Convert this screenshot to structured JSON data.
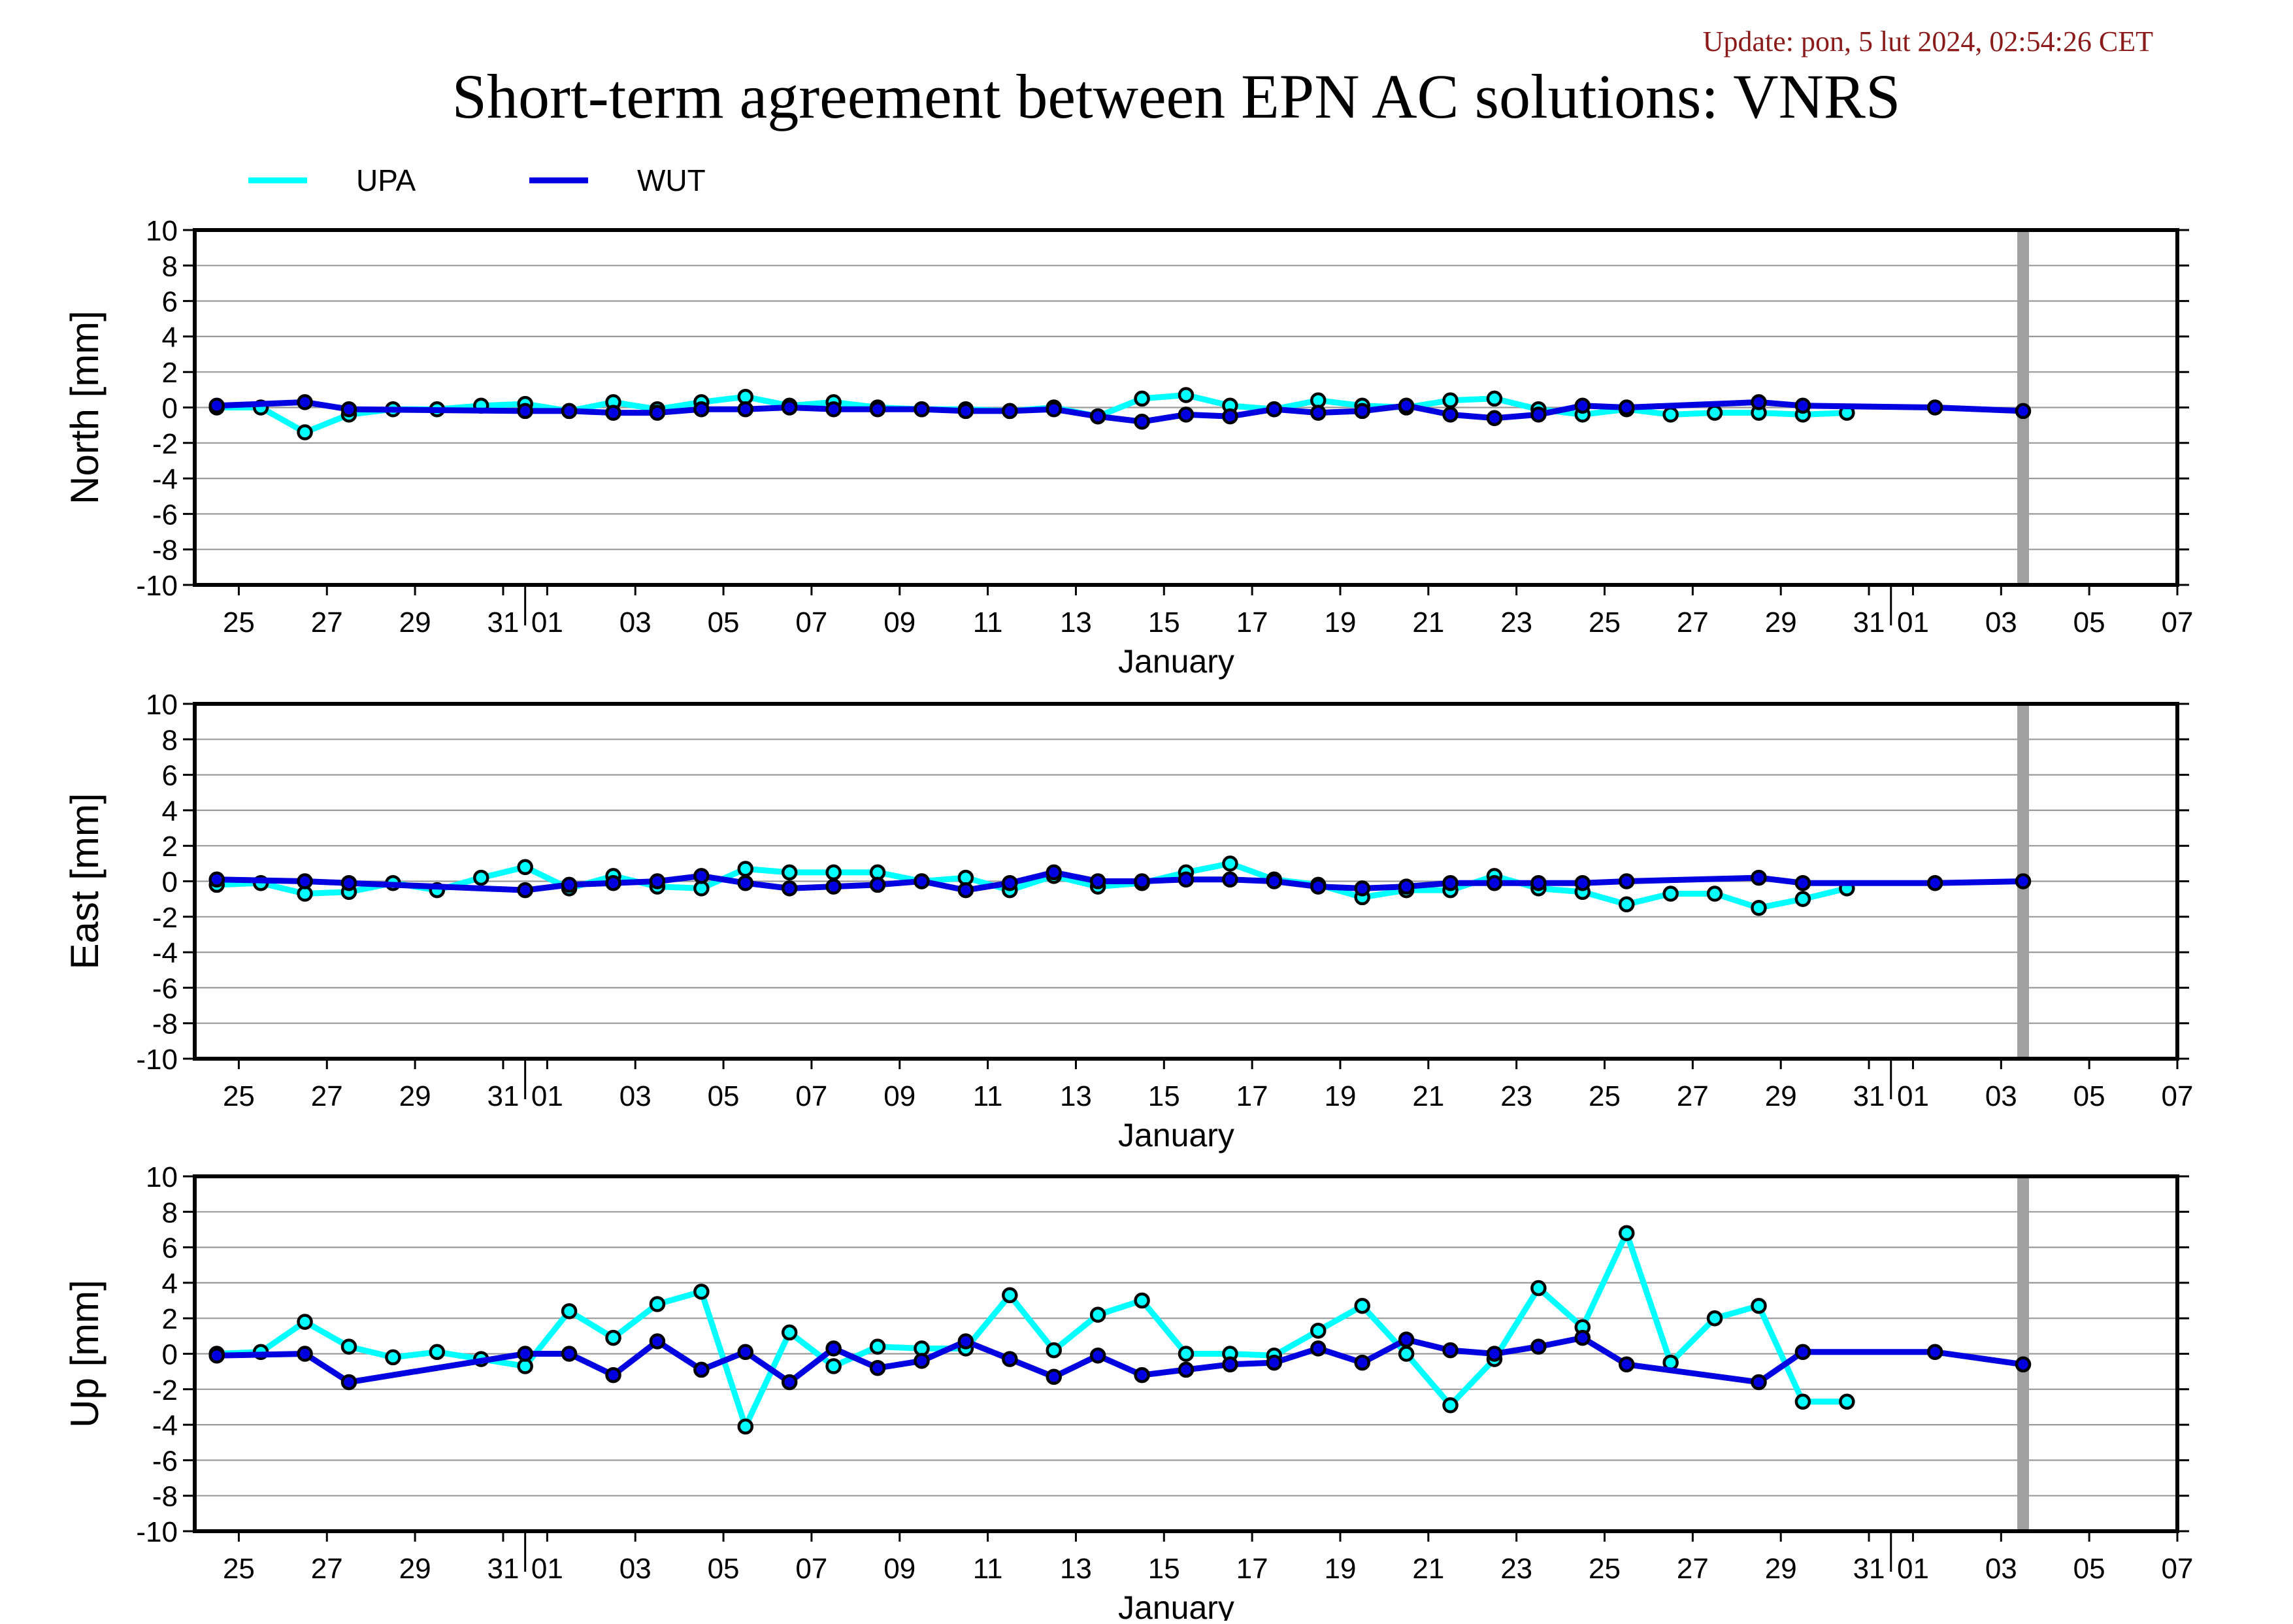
{
  "header": {
    "update_text": "Update: pon, 5 lut 2024, 02:54:26 CET",
    "title": "Short-term agreement between EPN AC solutions: VNRS"
  },
  "colors": {
    "UPA": "#00ffff",
    "WUT": "#0000e0",
    "update_text": "#8b1a1a",
    "gap_marker": "#a0a0a0"
  },
  "chart_data": {
    "type": "line",
    "legend": {
      "placement": "top-left",
      "entries": [
        "UPA",
        "WUT"
      ]
    },
    "x_axis": {
      "label": "January",
      "range_days": [
        -1,
        44
      ],
      "tick_labels": [
        "25",
        "27",
        "29",
        "31",
        "01",
        "03",
        "05",
        "07",
        "09",
        "11",
        "13",
        "15",
        "17",
        "19",
        "21",
        "23",
        "25",
        "27",
        "29",
        "31",
        "01",
        "03",
        "05",
        "07"
      ],
      "tick_days": [
        0,
        2,
        4,
        6,
        7,
        9,
        11,
        13,
        15,
        17,
        19,
        21,
        23,
        25,
        27,
        29,
        31,
        33,
        35,
        37,
        38,
        40,
        42,
        44
      ],
      "month_boundary_days": [
        6.5,
        37.5
      ],
      "gap_marker_day": 40.5
    },
    "panels": [
      {
        "ylabel": "North [mm]",
        "ylim": [
          -10,
          10
        ],
        "yticks": [
          -10,
          -8,
          -6,
          -4,
          -2,
          0,
          2,
          4,
          6,
          8,
          10
        ],
        "series": [
          {
            "name": "UPA",
            "x": [
              -0.5,
              0.5,
              1.5,
              2.5,
              3.5,
              4.5,
              5.5,
              6.5,
              7.5,
              8.5,
              9.5,
              10.5,
              11.5,
              12.5,
              13.5,
              14.5,
              15.5,
              16.5,
              17.5,
              18.5,
              19.5,
              20.5,
              21.5,
              22.5,
              23.5,
              24.5,
              25.5,
              26.5,
              27.5,
              28.5,
              29.5,
              30.5,
              31.5,
              32.5,
              33.5,
              34.5,
              35.5,
              36.5
            ],
            "y": [
              0,
              0,
              -1.4,
              -0.4,
              -0.1,
              -0.1,
              0.1,
              0.2,
              -0.2,
              0.3,
              -0.1,
              0.3,
              0.6,
              0.1,
              0.3,
              0,
              -0.1,
              -0.1,
              -0.2,
              0,
              -0.5,
              0.5,
              0.7,
              0.1,
              -0.1,
              0.4,
              0.1,
              0,
              0.4,
              0.5,
              -0.1,
              -0.4,
              -0.1,
              -0.4,
              -0.3,
              -0.3,
              -0.4,
              -0.3
            ]
          },
          {
            "name": "WUT",
            "x": [
              -0.5,
              1.5,
              2.5,
              6.5,
              7.5,
              8.5,
              9.5,
              10.5,
              11.5,
              12.5,
              13.5,
              14.5,
              15.5,
              16.5,
              17.5,
              18.5,
              19.5,
              20.5,
              21.5,
              22.5,
              23.5,
              24.5,
              25.5,
              26.5,
              27.5,
              28.5,
              29.5,
              30.5,
              31.5,
              34.5,
              35.5,
              38.5,
              40.5
            ],
            "y": [
              0.1,
              0.3,
              -0.1,
              -0.2,
              -0.2,
              -0.3,
              -0.3,
              -0.1,
              -0.1,
              0,
              -0.1,
              -0.1,
              -0.1,
              -0.2,
              -0.2,
              -0.1,
              -0.5,
              -0.8,
              -0.4,
              -0.5,
              -0.1,
              -0.3,
              -0.2,
              0.1,
              -0.4,
              -0.6,
              -0.4,
              0.1,
              0,
              0.3,
              0.1,
              0,
              -0.2
            ]
          }
        ]
      },
      {
        "ylabel": "East [mm]",
        "ylim": [
          -10,
          10
        ],
        "yticks": [
          -10,
          -8,
          -6,
          -4,
          -2,
          0,
          2,
          4,
          6,
          8,
          10
        ],
        "series": [
          {
            "name": "UPA",
            "x": [
              -0.5,
              0.5,
              1.5,
              2.5,
              3.5,
              4.5,
              5.5,
              6.5,
              7.5,
              8.5,
              9.5,
              10.5,
              11.5,
              12.5,
              13.5,
              14.5,
              15.5,
              16.5,
              17.5,
              18.5,
              19.5,
              20.5,
              21.5,
              22.5,
              23.5,
              24.5,
              25.5,
              26.5,
              27.5,
              28.5,
              29.5,
              30.5,
              31.5,
              32.5,
              33.5,
              34.5,
              35.5,
              36.5
            ],
            "y": [
              -0.2,
              -0.1,
              -0.7,
              -0.6,
              -0.1,
              -0.5,
              0.2,
              0.8,
              -0.4,
              0.3,
              -0.3,
              -0.4,
              0.7,
              0.5,
              0.5,
              0.5,
              0,
              0.2,
              -0.5,
              0.3,
              -0.3,
              -0.1,
              0.5,
              1.0,
              0.1,
              -0.2,
              -0.9,
              -0.5,
              -0.5,
              0.3,
              -0.4,
              -0.6,
              -1.3,
              -0.7,
              -0.7,
              -1.5,
              -1.0,
              -0.4
            ]
          },
          {
            "name": "WUT",
            "x": [
              -0.5,
              1.5,
              2.5,
              6.5,
              7.5,
              8.5,
              9.5,
              10.5,
              11.5,
              12.5,
              13.5,
              14.5,
              15.5,
              16.5,
              17.5,
              18.5,
              19.5,
              20.5,
              21.5,
              22.5,
              23.5,
              24.5,
              25.5,
              26.5,
              27.5,
              28.5,
              29.5,
              30.5,
              31.5,
              34.5,
              35.5,
              38.5,
              40.5
            ],
            "y": [
              0.1,
              0,
              -0.1,
              -0.5,
              -0.2,
              -0.1,
              0,
              0.3,
              -0.1,
              -0.4,
              -0.3,
              -0.2,
              0,
              -0.5,
              -0.1,
              0.5,
              0,
              0,
              0.1,
              0.1,
              0,
              -0.3,
              -0.4,
              -0.3,
              -0.1,
              -0.1,
              -0.1,
              -0.1,
              0,
              0.2,
              -0.1,
              -0.1,
              0
            ]
          }
        ]
      },
      {
        "ylabel": "Up [mm]",
        "ylim": [
          -10,
          10
        ],
        "yticks": [
          -10,
          -8,
          -6,
          -4,
          -2,
          0,
          2,
          4,
          6,
          8,
          10
        ],
        "series": [
          {
            "name": "UPA",
            "x": [
              -0.5,
              0.5,
              1.5,
              2.5,
              3.5,
              4.5,
              5.5,
              6.5,
              7.5,
              8.5,
              9.5,
              10.5,
              11.5,
              12.5,
              13.5,
              14.5,
              15.5,
              16.5,
              17.5,
              18.5,
              19.5,
              20.5,
              21.5,
              22.5,
              23.5,
              24.5,
              25.5,
              26.5,
              27.5,
              28.5,
              29.5,
              30.5,
              31.5,
              32.5,
              33.5,
              34.5,
              35.5,
              36.5
            ],
            "y": [
              0,
              0.1,
              1.8,
              0.4,
              -0.2,
              0.1,
              -0.3,
              -0.7,
              2.4,
              0.9,
              2.8,
              3.5,
              -4.1,
              1.2,
              -0.7,
              0.4,
              0.3,
              0.3,
              3.3,
              0.2,
              2.2,
              3.0,
              0,
              0,
              -0.1,
              1.3,
              2.7,
              0,
              -2.9,
              -0.3,
              3.7,
              1.5,
              6.8,
              -0.5,
              2.0,
              2.7,
              -2.7,
              -2.7
            ]
          },
          {
            "name": "WUT",
            "x": [
              -0.5,
              1.5,
              2.5,
              6.5,
              7.5,
              8.5,
              9.5,
              10.5,
              11.5,
              12.5,
              13.5,
              14.5,
              15.5,
              16.5,
              17.5,
              18.5,
              19.5,
              20.5,
              21.5,
              22.5,
              23.5,
              24.5,
              25.5,
              26.5,
              27.5,
              28.5,
              29.5,
              30.5,
              31.5,
              34.5,
              35.5,
              38.5,
              40.5
            ],
            "y": [
              -0.1,
              0,
              -1.6,
              0,
              0,
              -1.2,
              0.7,
              -0.9,
              0.1,
              -1.6,
              0.3,
              -0.8,
              -0.4,
              0.7,
              -0.3,
              -1.3,
              -0.1,
              -1.2,
              -0.9,
              -0.6,
              -0.5,
              0.3,
              -0.5,
              0.8,
              0.2,
              0,
              0.4,
              0.9,
              -0.6,
              -1.6,
              0.1,
              0.1,
              -0.6
            ]
          }
        ]
      }
    ]
  }
}
